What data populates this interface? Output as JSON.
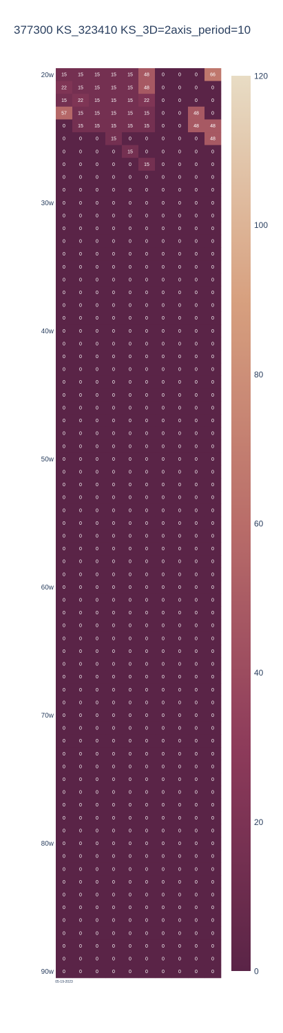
{
  "chart_data": {
    "type": "heatmap",
    "title": "377300 KS_323410 KS_3D=2axis_period=10",
    "x_tick_labels": [
      "05-19-2023"
    ],
    "y_tick_labels": [
      "20w",
      "30w",
      "40w",
      "50w",
      "60w",
      "70w",
      "80w",
      "90w"
    ],
    "y_range_weeks": [
      20,
      90
    ],
    "n_columns": 10,
    "colorscale": [
      "#e8dcc4",
      "#d7a07f",
      "#b96d69",
      "#8d3b5a",
      "#5a2447"
    ],
    "zmin": 0,
    "zmax": 120,
    "colorbar_ticks": [
      0,
      20,
      40,
      60,
      80,
      100,
      120
    ],
    "z_nonzero_rows": [
      [
        15,
        15,
        15,
        15,
        15,
        48,
        0,
        0,
        0,
        66
      ],
      [
        22,
        15,
        15,
        15,
        15,
        48,
        0,
        0,
        0,
        0
      ],
      [
        15,
        22,
        15,
        15,
        15,
        22,
        0,
        0,
        0,
        0
      ],
      [
        57,
        15,
        15,
        15,
        15,
        15,
        0,
        0,
        48,
        0
      ],
      [
        0,
        15,
        15,
        15,
        15,
        15,
        0,
        0,
        48,
        48
      ],
      [
        0,
        0,
        0,
        15,
        0,
        0,
        0,
        0,
        0,
        48
      ],
      [
        0,
        0,
        0,
        0,
        15,
        0,
        0,
        0,
        0,
        0
      ],
      [
        0,
        0,
        0,
        0,
        0,
        15,
        0,
        0,
        0,
        0
      ]
    ],
    "z_fill_remaining": 0
  }
}
